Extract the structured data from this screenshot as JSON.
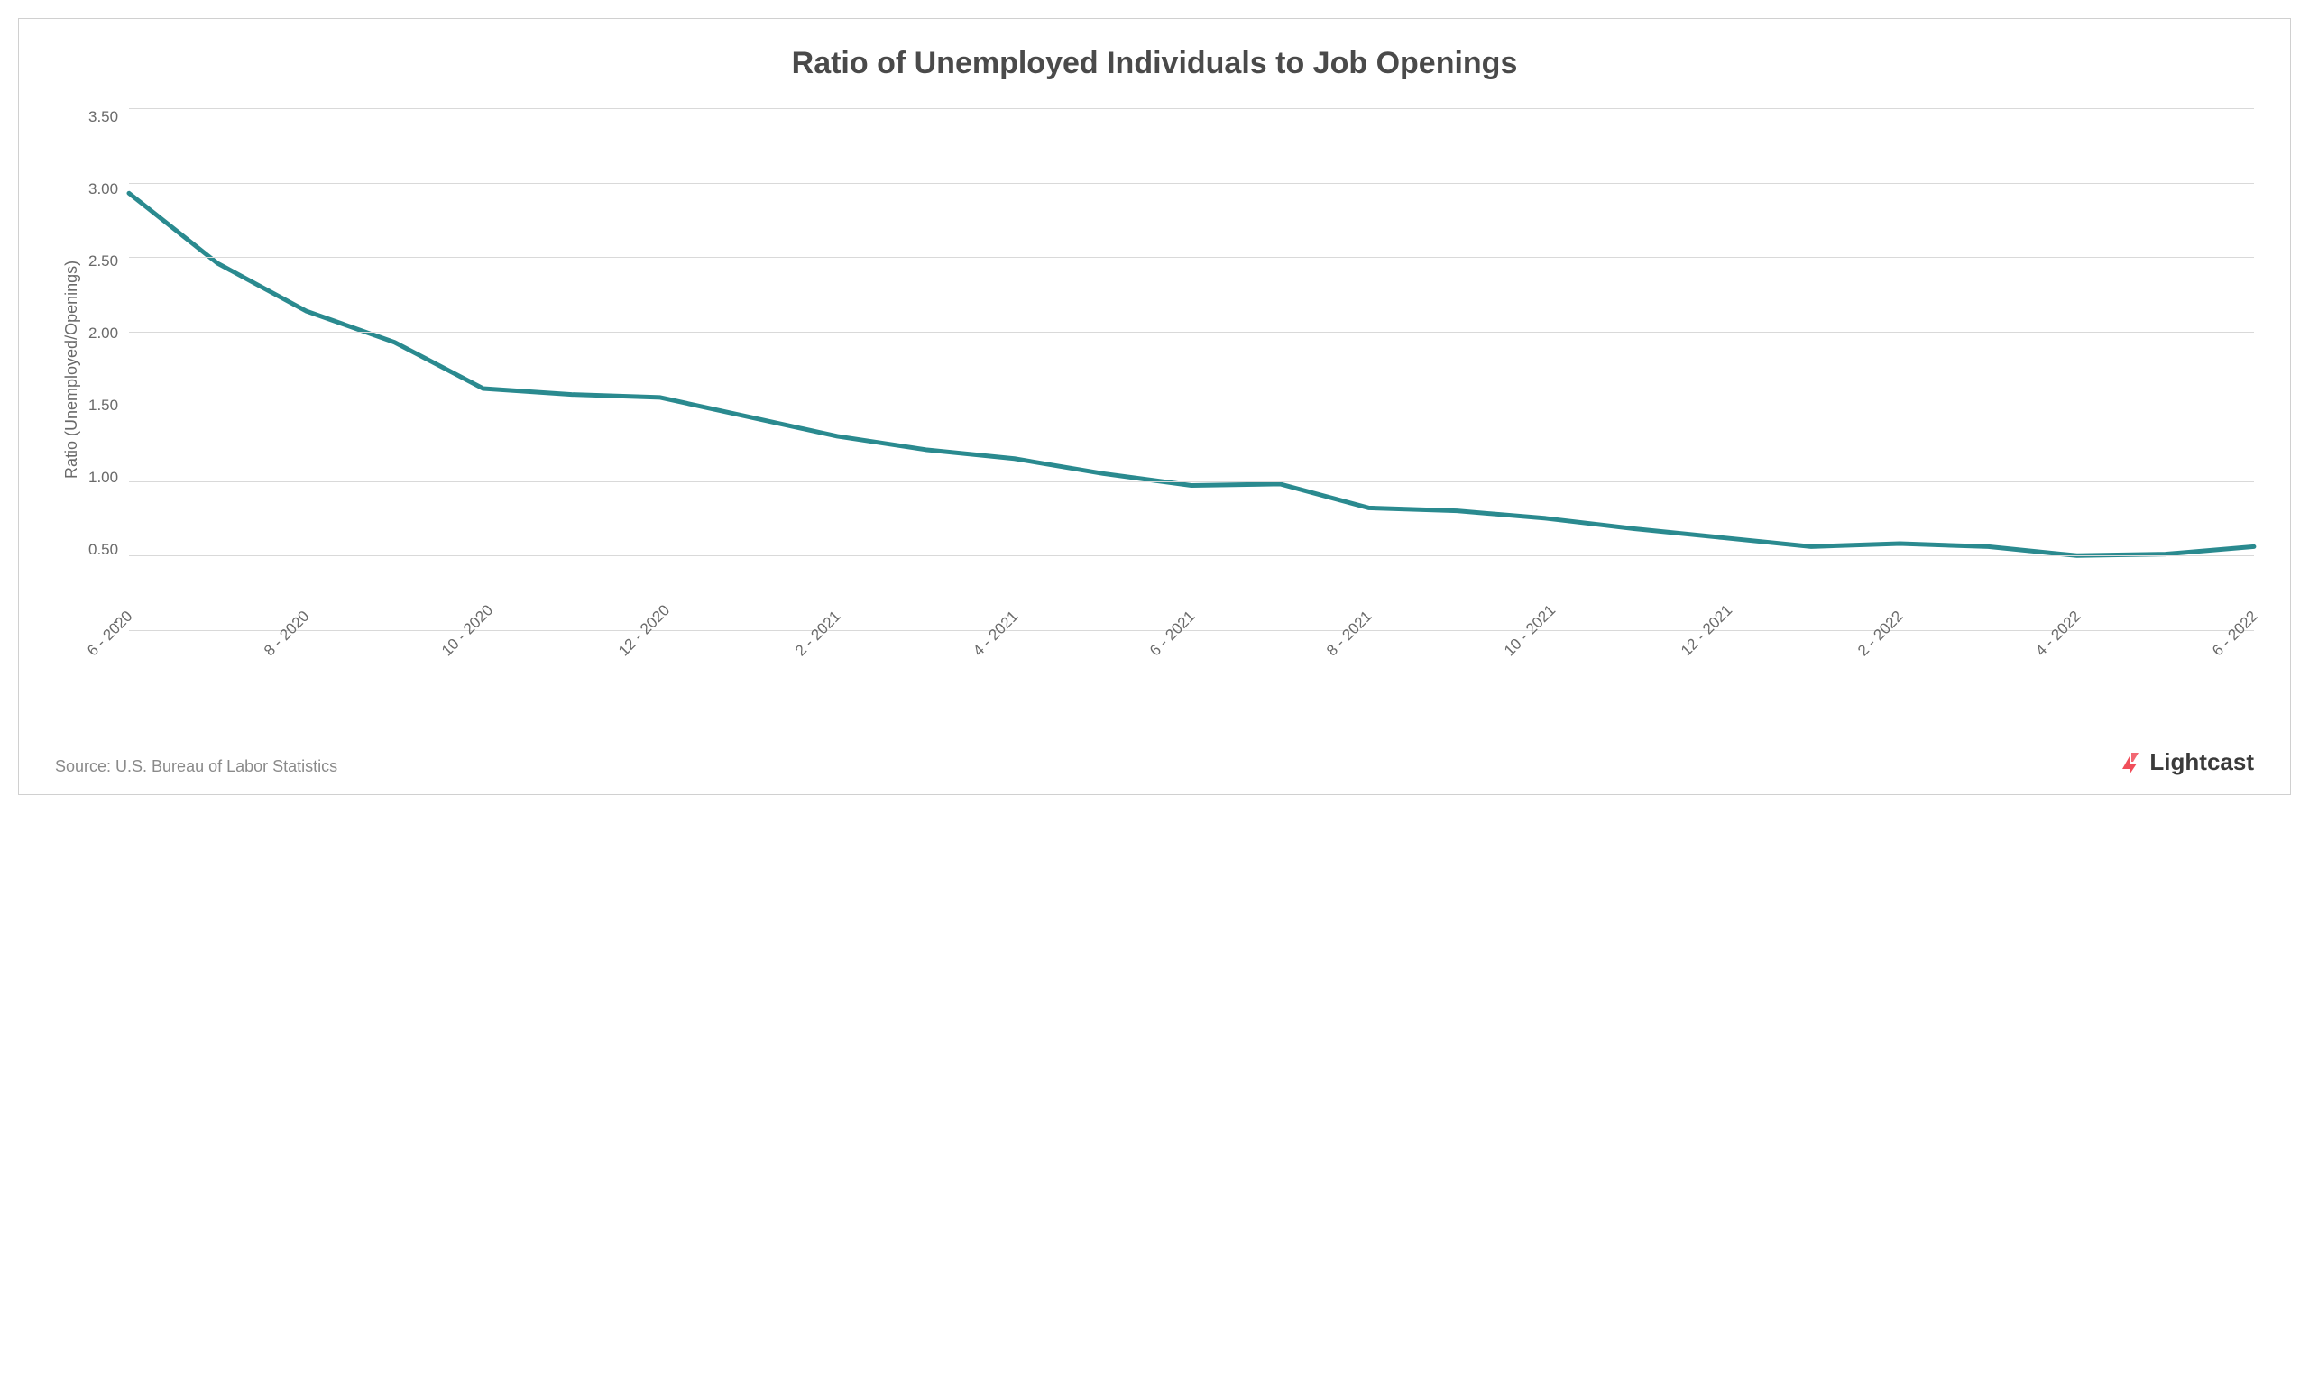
{
  "chart": {
    "type": "line",
    "title": "Ratio of Unemployed Individuals to Job Openings",
    "ylabel": "Ratio (Unemployed/Openings)",
    "title_fontsize": 34,
    "title_color": "#4a4a4a",
    "label_fontsize": 18,
    "tick_fontsize": 17,
    "tick_color": "#6a6a6a",
    "background_color": "#ffffff",
    "grid_color": "#d9d9d9",
    "line_color": "#2a8a8f",
    "line_width": 5,
    "ylim": [
      0,
      3.5
    ],
    "ytick_step": 0.5,
    "yticks": [
      "3.50",
      "3.00",
      "2.50",
      "2.00",
      "1.50",
      "1.00",
      "0.50",
      " -   "
    ],
    "x_labels_shown": [
      "6 - 2020",
      "8 - 2020",
      "10 - 2020",
      "12 - 2020",
      "2 - 2021",
      "4 - 2021",
      "6 - 2021",
      "8 - 2021",
      "10 - 2021",
      "12 - 2021",
      "2 - 2022",
      "4 - 2022",
      "6 - 2022"
    ],
    "x_label_step": 2,
    "categories": [
      "6 - 2020",
      "7 - 2020",
      "8 - 2020",
      "9 - 2020",
      "10 - 2020",
      "11 - 2020",
      "12 - 2020",
      "1 - 2021",
      "2 - 2021",
      "3 - 2021",
      "4 - 2021",
      "5 - 2021",
      "6 - 2021",
      "7 - 2021",
      "8 - 2021",
      "9 - 2021",
      "10 - 2021",
      "11 - 2021",
      "12 - 2021",
      "1 - 2022",
      "2 - 2022",
      "3 - 2022",
      "4 - 2022",
      "5 - 2022",
      "6 - 2022"
    ],
    "values": [
      2.93,
      2.46,
      2.14,
      1.93,
      1.62,
      1.58,
      1.56,
      1.43,
      1.3,
      1.21,
      1.15,
      1.05,
      0.97,
      0.98,
      0.82,
      0.8,
      0.75,
      0.68,
      0.62,
      0.56,
      0.58,
      0.56,
      0.5,
      0.51,
      0.56
    ],
    "x_tick_rotation": -45
  },
  "source": "Source:  U.S. Bureau of Labor Statistics",
  "logo": {
    "text": "Lightcast",
    "icon_color": "#f04e5a"
  }
}
